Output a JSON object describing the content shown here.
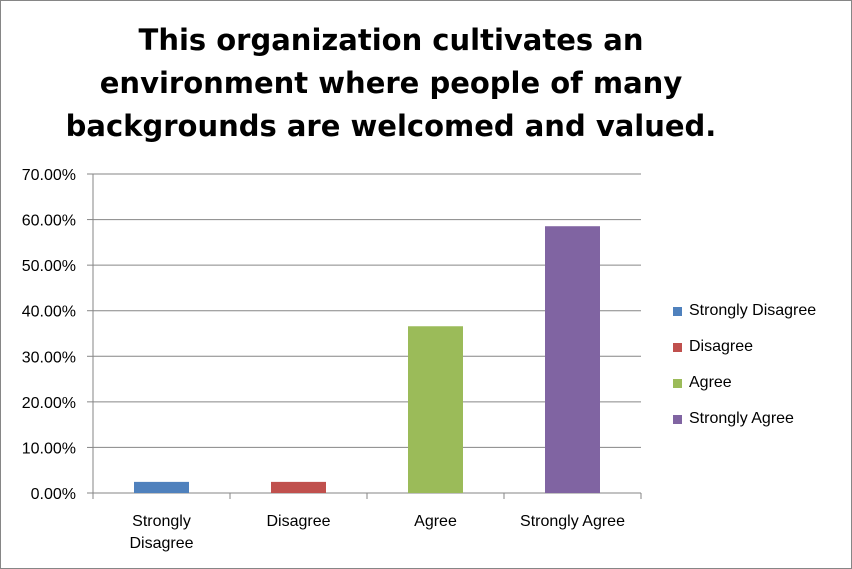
{
  "chart_data": {
    "type": "bar",
    "title": "This organization cultivates an environment where people of many backgrounds are welcomed and valued.",
    "categories": [
      "Strongly Disagree",
      "Disagree",
      "Agree",
      "Strongly Agree"
    ],
    "category_lines": [
      [
        "Strongly",
        "Disagree"
      ],
      [
        "Disagree"
      ],
      [
        "Agree"
      ],
      [
        "Strongly Agree"
      ]
    ],
    "values": [
      0.0244,
      0.0244,
      0.3659,
      0.5854
    ],
    "colors": [
      "#4f81bd",
      "#c0504d",
      "#9bbb59",
      "#8064a2"
    ],
    "ylim": [
      0,
      0.7
    ],
    "yticks": [
      0,
      0.1,
      0.2,
      0.3,
      0.4,
      0.5,
      0.6,
      0.7
    ],
    "ytick_labels": [
      "0.00%",
      "10.00%",
      "20.00%",
      "30.00%",
      "40.00%",
      "50.00%",
      "60.00%",
      "70.00%"
    ],
    "grid": true,
    "legend_position": "right",
    "legend": [
      "Strongly Disagree",
      "Disagree",
      "Agree",
      "Strongly Agree"
    ]
  }
}
